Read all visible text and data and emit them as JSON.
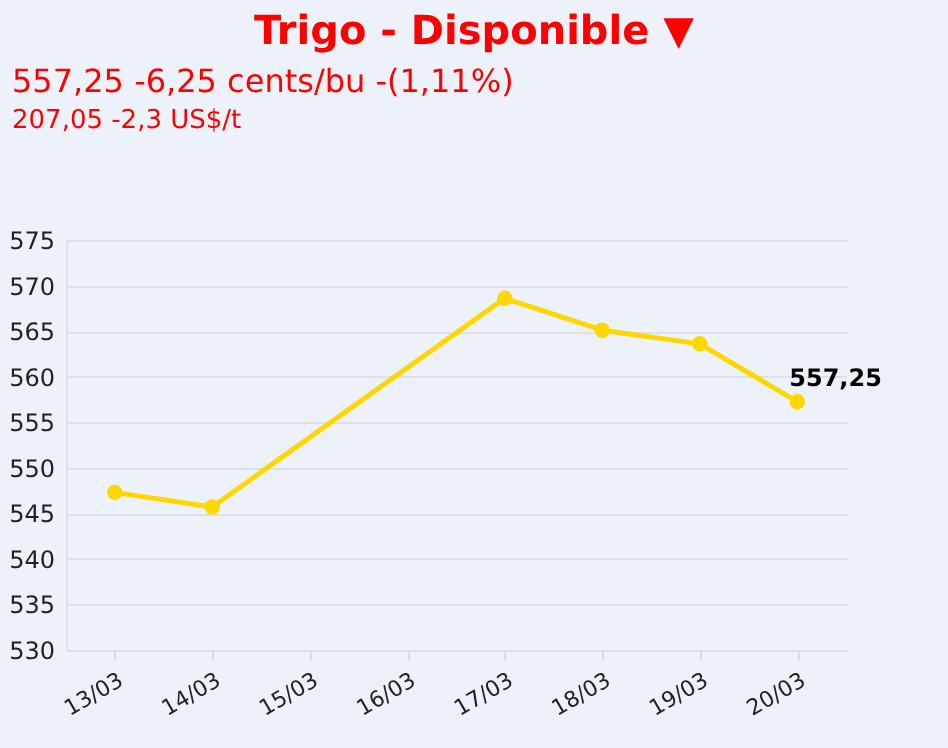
{
  "chart_data": {
    "type": "line",
    "title": "Trigo - Disponible ▼",
    "subtitle": "557,25 -6,25 cents/bu -(1,11%)",
    "annotations": [
      "207,05 -2,3 US$/t"
    ],
    "categories": [
      "13/03",
      "14/03",
      "15/03",
      "16/03",
      "17/03",
      "18/03",
      "19/03",
      "20/03"
    ],
    "series": [
      {
        "color": "#ffd700",
        "x": [
          "13/03",
          "14/03",
          "17/03",
          "18/03",
          "19/03",
          "20/03"
        ],
        "values": [
          547.3,
          545.7,
          568.6,
          565.1,
          563.6,
          557.25
        ],
        "value_labels": [
          null,
          null,
          null,
          null,
          null,
          "557,25"
        ]
      }
    ],
    "ylim": [
      530,
      575
    ],
    "yticks": [
      530,
      535,
      540,
      545,
      550,
      555,
      560,
      565,
      570,
      575
    ],
    "grid": "y",
    "marker": "circle",
    "line_style": "solid",
    "legend": false
  }
}
